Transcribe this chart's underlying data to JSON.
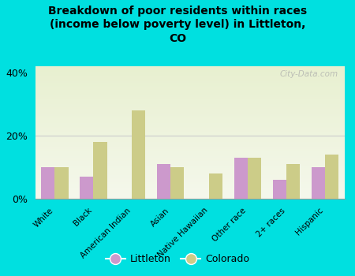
{
  "title": "Breakdown of poor residents within races\n(income below poverty level) in Littleton,\nCO",
  "categories": [
    "White",
    "Black",
    "American Indian",
    "Asian",
    "Native Hawaiian",
    "Other race",
    "2+ races",
    "Hispanic"
  ],
  "littleton": [
    10,
    7,
    0,
    11,
    0,
    13,
    6,
    10
  ],
  "colorado": [
    10,
    18,
    28,
    10,
    8,
    13,
    11,
    14
  ],
  "littleton_color": "#cc99cc",
  "colorado_color": "#cccc88",
  "background_color": "#00e0e0",
  "ylim": [
    0,
    42
  ],
  "yticks": [
    0,
    20,
    40
  ],
  "ytick_labels": [
    "0%",
    "20%",
    "40%"
  ],
  "gridline_color": "#cccccc",
  "watermark": "City-Data.com",
  "legend_littleton": "Littleton",
  "legend_colorado": "Colorado",
  "bar_width": 0.35,
  "plot_bg_colors": [
    "#f0f5e0",
    "#e8f0d8",
    "#ddeac8"
  ],
  "title_fontsize": 10,
  "tick_fontsize": 7.5
}
